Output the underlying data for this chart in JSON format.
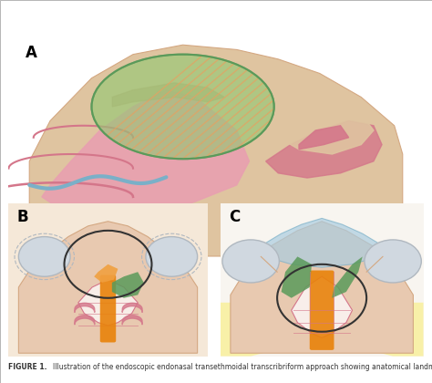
{
  "fig_width": 4.74,
  "fig_height": 4.2,
  "dpi": 100,
  "bg_color": "#ffffff",
  "panel_labels": [
    "A",
    "B",
    "C"
  ],
  "label_fontsize": 12,
  "label_fontweight": "bold",
  "caption_fontsize": 5.5,
  "caption_color": "#333333",
  "colors": {
    "skin": "#e8c9b0",
    "skin_dark": "#d4a882",
    "mucosa": "#d4768a",
    "mucosa_light": "#e8a0b0",
    "bone": "#c8a882",
    "bone_light": "#dfc4a0",
    "blue": "#7ab0c8",
    "blue_light": "#aacce0",
    "orange": "#e8820a",
    "orange_light": "#f0a040",
    "green": "#5a9a5a",
    "green_light": "#7abf7a",
    "gray": "#b0b8c0",
    "gray_light": "#d0d8e0",
    "yellow_light": "#f8f0a0",
    "hatching_green": "#90c870",
    "hatching_orange": "#e8a060"
  }
}
